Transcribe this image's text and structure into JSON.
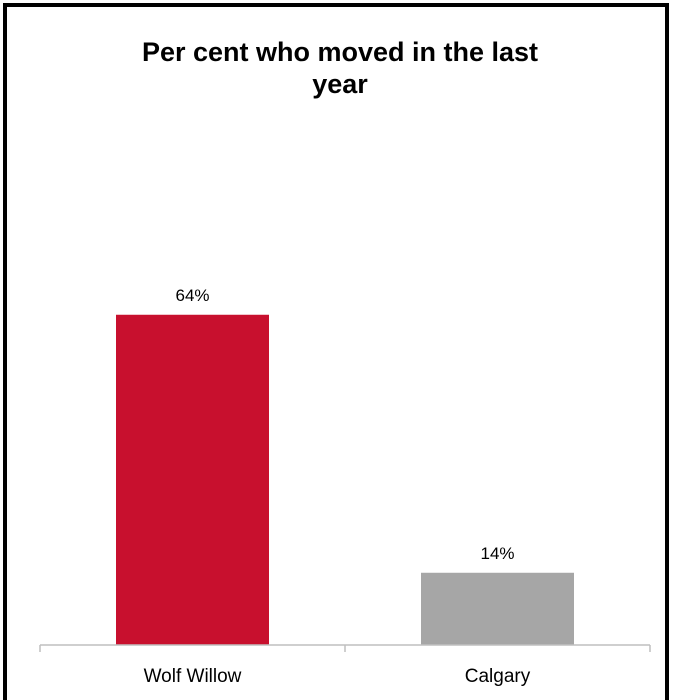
{
  "chart_data": {
    "type": "bar",
    "title_lines": [
      "Per cent who moved in the last",
      "year"
    ],
    "categories": [
      "Wolf Willow",
      "Calgary"
    ],
    "values": [
      64,
      14
    ],
    "value_labels": [
      "64%",
      "14%"
    ],
    "colors": [
      "#c8102e",
      "#a6a6a6"
    ],
    "xlabel": "",
    "ylabel": "",
    "ylim": [
      0,
      100
    ],
    "grid": false,
    "legend": "none"
  }
}
